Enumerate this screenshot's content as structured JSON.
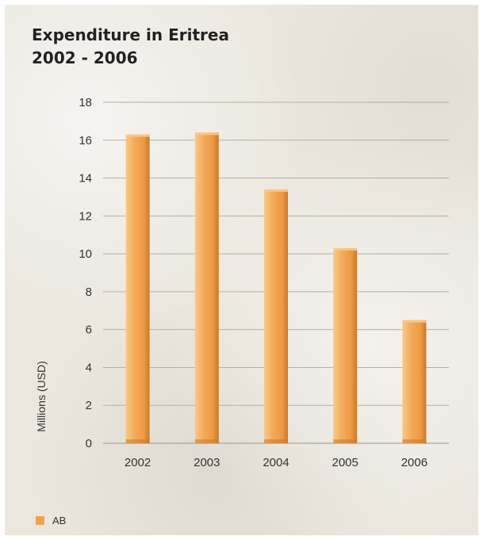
{
  "chart_data": {
    "type": "bar",
    "title": "Expenditure in Eritrea",
    "subtitle": "2002 - 2006",
    "categories": [
      "2002",
      "2003",
      "2004",
      "2005",
      "2006"
    ],
    "series": [
      {
        "name": "AB",
        "values": [
          16.3,
          16.4,
          13.4,
          10.3,
          6.5
        ]
      }
    ],
    "xlabel": "",
    "ylabel": "Millions (USD)",
    "ylim": [
      0,
      18
    ],
    "yticks": [
      0,
      2,
      4,
      6,
      8,
      10,
      12,
      14,
      16,
      18
    ],
    "grid": true,
    "legend_position": "bottom-left",
    "bar_color": "#f0a24e",
    "bar_highlight": "#f9c98a",
    "bar_shadow": "#c87a2c"
  }
}
